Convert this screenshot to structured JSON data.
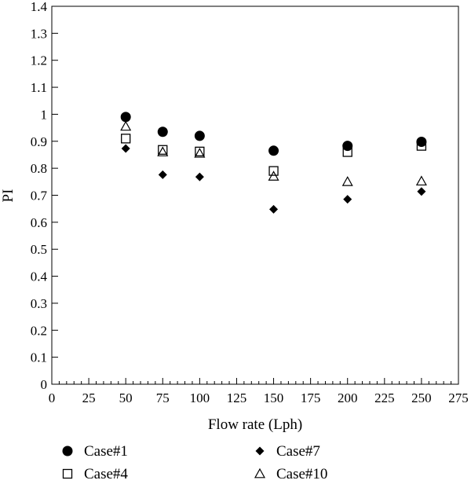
{
  "chart_data": {
    "type": "scatter",
    "title": "",
    "xlabel": "Flow rate (Lph)",
    "ylabel": "PI",
    "xlim": [
      0,
      275
    ],
    "ylim": [
      0,
      1.4
    ],
    "x_ticks": [
      "0",
      "25",
      "50",
      "75",
      "100",
      "125",
      "150",
      "175",
      "200",
      "225",
      "250",
      "275"
    ],
    "y_ticks": [
      "0",
      "0.1",
      "0.2",
      "0.3",
      "0.4",
      "0.5",
      "0.6",
      "0.7",
      "0.8",
      "0.9",
      "1",
      "1.1",
      "1.2",
      "1.3",
      "1.4"
    ],
    "grid": false,
    "legend_position": "bottom",
    "series": [
      {
        "name": "Case#1",
        "marker": "filled-circle",
        "x": [
          50,
          75,
          100,
          150,
          200,
          250
        ],
        "y": [
          0.99,
          0.935,
          0.92,
          0.865,
          0.883,
          0.898
        ]
      },
      {
        "name": "Case#4",
        "marker": "open-square",
        "x": [
          50,
          75,
          100,
          150,
          200,
          250
        ],
        "y": [
          0.91,
          0.868,
          0.862,
          0.79,
          0.86,
          0.883
        ]
      },
      {
        "name": "Case#7",
        "marker": "filled-diamond",
        "x": [
          50,
          75,
          100,
          150,
          200,
          250
        ],
        "y": [
          0.873,
          0.776,
          0.768,
          0.648,
          0.685,
          0.714
        ]
      },
      {
        "name": "Case#10",
        "marker": "open-triangle",
        "x": [
          50,
          75,
          100,
          150,
          200,
          250
        ],
        "y": [
          0.955,
          0.86,
          0.855,
          0.77,
          0.75,
          0.752
        ]
      }
    ]
  }
}
